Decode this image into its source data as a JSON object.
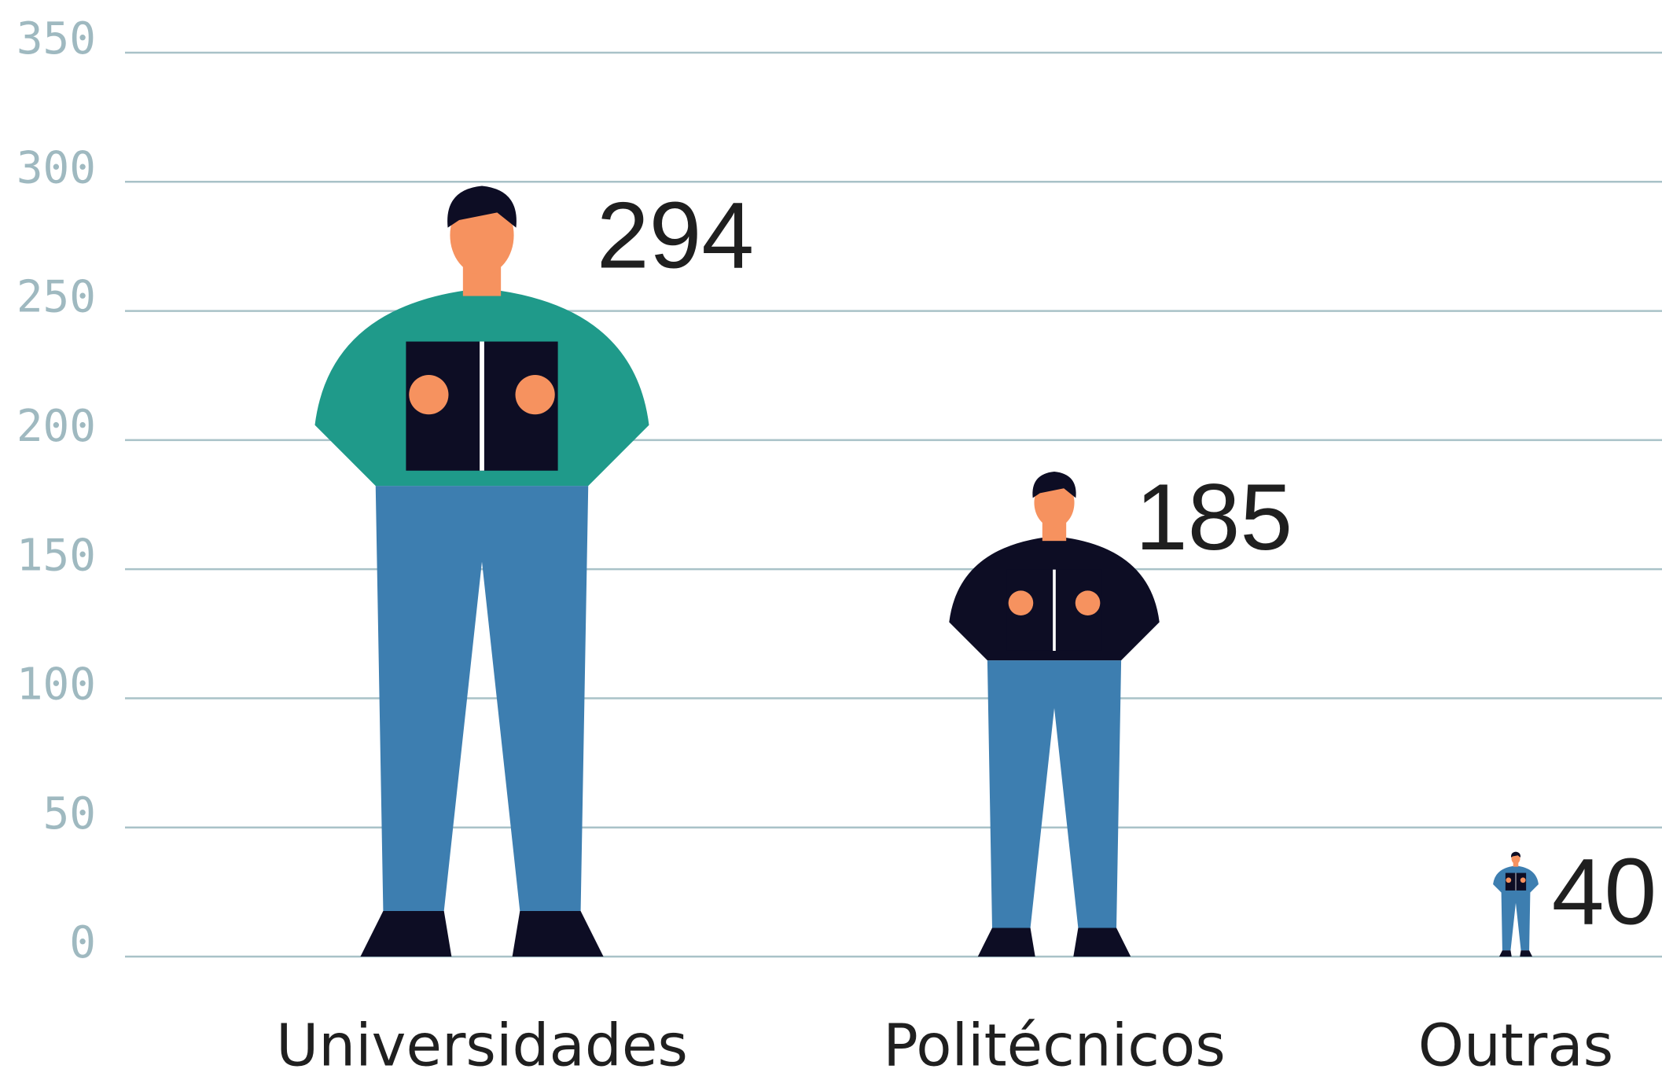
{
  "chart_data": {
    "type": "pictogram",
    "categories": [
      "Universidades",
      "Politécnicos",
      "Outras"
    ],
    "values": [
      294,
      185,
      40
    ],
    "color": "#3d7eb0",
    "ylim": [
      0,
      350
    ],
    "yticks": [
      0,
      50,
      100,
      150,
      200,
      250,
      300,
      350
    ],
    "grid": true
  }
}
